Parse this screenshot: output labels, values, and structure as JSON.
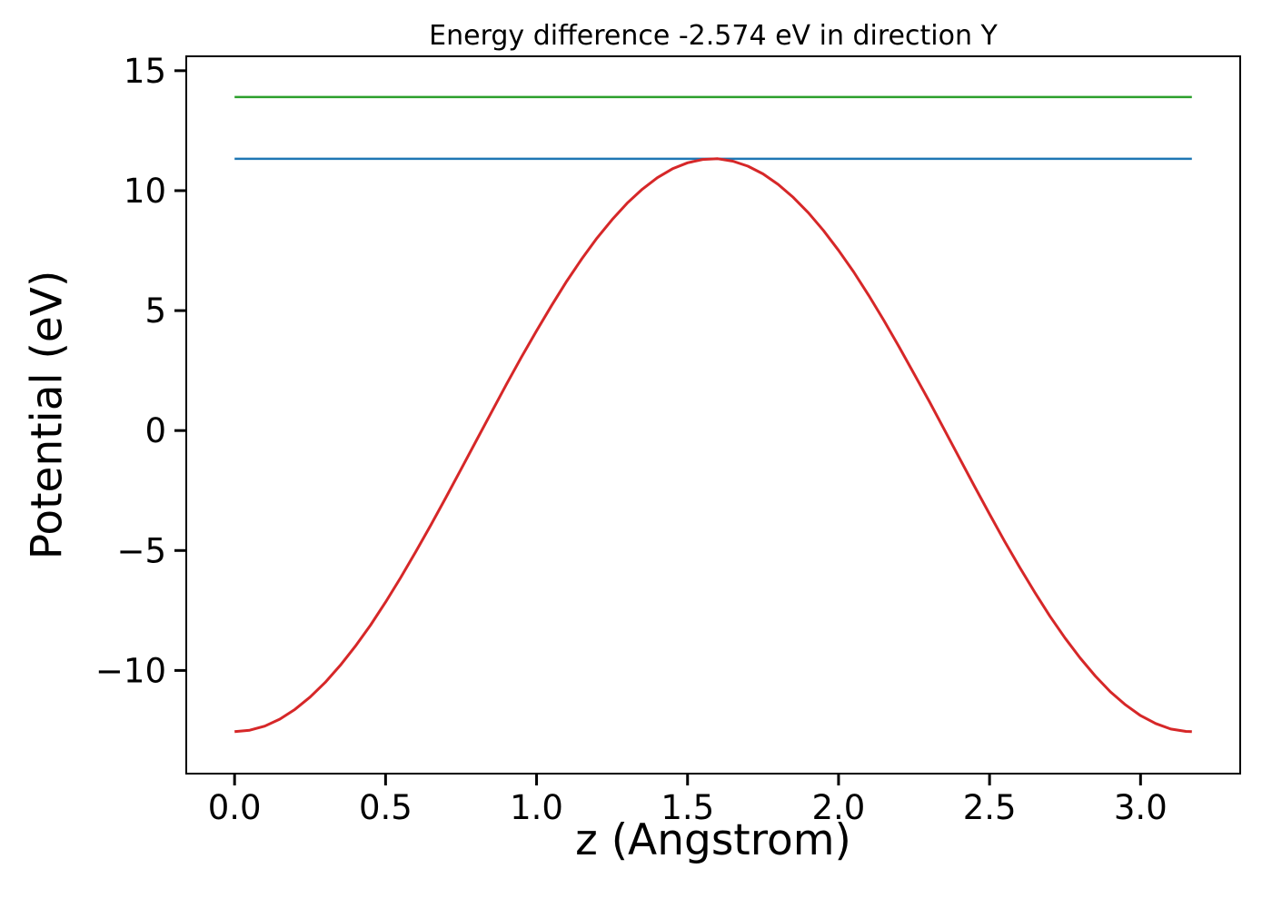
{
  "chart_data": {
    "type": "line",
    "title": "Energy difference -2.574 eV in direction Y",
    "xlabel": "z (Angstrom)",
    "ylabel": "Potential (eV)",
    "xlim": [
      -0.16,
      3.33
    ],
    "ylim": [
      -14.3,
      15.6
    ],
    "xticks": [
      0.0,
      0.5,
      1.0,
      1.5,
      2.0,
      2.5,
      3.0
    ],
    "xtick_labels": [
      "0.0",
      "0.5",
      "1.0",
      "1.5",
      "2.0",
      "2.5",
      "3.0"
    ],
    "yticks": [
      -10,
      -5,
      0,
      5,
      10,
      15
    ],
    "ytick_labels": [
      "−10",
      "−5",
      "0",
      "5",
      "10",
      "15"
    ],
    "grid": false,
    "legend": false,
    "colors": {
      "potential_curve": "#d62728",
      "lower_level_line": "#1f77b4",
      "upper_level_line": "#2ca02c",
      "axes": "#000000"
    },
    "series": [
      {
        "name": "lower-energy-level",
        "color": "#1f77b4",
        "width": 2.5,
        "x": [
          0.0,
          3.17
        ],
        "y": [
          11.326,
          11.326
        ]
      },
      {
        "name": "upper-energy-level",
        "color": "#2ca02c",
        "width": 2.5,
        "x": [
          0.0,
          3.17
        ],
        "y": [
          13.9,
          13.9
        ]
      },
      {
        "name": "planar-average-potential",
        "color": "#d62728",
        "width": 3,
        "x": [
          0.0,
          0.05,
          0.1,
          0.15,
          0.2,
          0.25,
          0.3,
          0.35,
          0.4,
          0.45,
          0.5,
          0.55,
          0.6,
          0.65,
          0.7,
          0.75,
          0.8,
          0.85,
          0.9,
          0.95,
          1.0,
          1.05,
          1.1,
          1.15,
          1.2,
          1.25,
          1.3,
          1.35,
          1.4,
          1.45,
          1.5,
          1.55,
          1.6,
          1.65,
          1.7,
          1.75,
          1.8,
          1.85,
          1.9,
          1.95,
          2.0,
          2.05,
          2.1,
          2.15,
          2.2,
          2.25,
          2.3,
          2.35,
          2.4,
          2.45,
          2.5,
          2.55,
          2.6,
          2.65,
          2.7,
          2.75,
          2.8,
          2.85,
          2.9,
          2.95,
          3.0,
          3.05,
          3.1,
          3.15,
          3.17
        ],
        "y": [
          -12.55,
          -12.49,
          -12.32,
          -12.03,
          -11.62,
          -11.11,
          -10.5,
          -9.79,
          -8.99,
          -8.11,
          -7.15,
          -6.13,
          -5.05,
          -3.94,
          -2.79,
          -1.61,
          -0.43,
          0.75,
          1.92,
          3.06,
          4.16,
          5.22,
          6.23,
          7.16,
          8.02,
          8.79,
          9.48,
          10.06,
          10.54,
          10.91,
          11.16,
          11.3,
          11.33,
          11.23,
          11.02,
          10.7,
          10.26,
          9.72,
          9.08,
          8.34,
          7.51,
          6.61,
          5.63,
          4.59,
          3.5,
          2.37,
          1.22,
          0.04,
          -1.14,
          -2.32,
          -3.48,
          -4.62,
          -5.71,
          -6.75,
          -7.74,
          -8.65,
          -9.48,
          -10.23,
          -10.89,
          -11.43,
          -11.88,
          -12.21,
          -12.44,
          -12.54,
          -12.55
        ]
      }
    ],
    "annotations": {
      "energy_difference_ev": -2.574,
      "direction": "Y"
    }
  }
}
